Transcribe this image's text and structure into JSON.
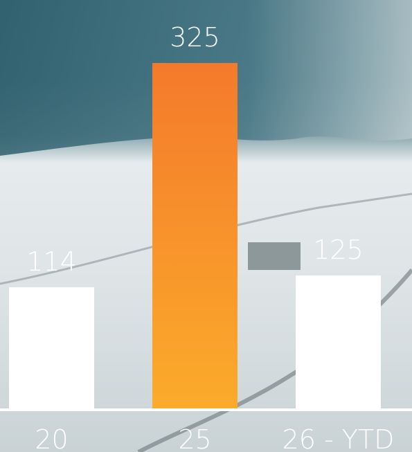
{
  "chart_data": {
    "type": "bar",
    "categories": [
      "20",
      "25",
      "26 - YTD"
    ],
    "values": [
      114,
      325,
      125
    ],
    "colors": [
      "#ffffff",
      [
        "#f47a2b",
        "#fbab2b"
      ],
      "#ffffff"
    ],
    "ylim": [
      0,
      325
    ]
  }
}
